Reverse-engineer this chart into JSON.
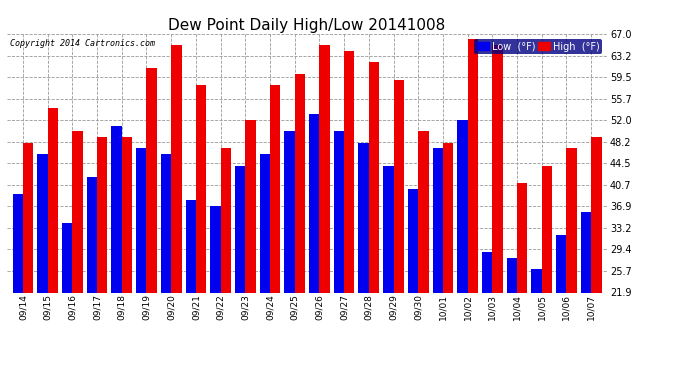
{
  "title": "Dew Point Daily High/Low 20141008",
  "copyright": "Copyright 2014 Cartronics.com",
  "dates": [
    "09/14",
    "09/15",
    "09/16",
    "09/17",
    "09/18",
    "09/19",
    "09/20",
    "09/21",
    "09/22",
    "09/23",
    "09/24",
    "09/25",
    "09/26",
    "09/27",
    "09/28",
    "09/29",
    "09/30",
    "10/01",
    "10/02",
    "10/03",
    "10/04",
    "10/05",
    "10/06",
    "10/07"
  ],
  "low": [
    39,
    46,
    34,
    42,
    51,
    47,
    46,
    38,
    37,
    44,
    46,
    50,
    53,
    50,
    48,
    44,
    40,
    47,
    52,
    29,
    28,
    26,
    32,
    36
  ],
  "high": [
    48,
    54,
    50,
    49,
    49,
    61,
    65,
    58,
    47,
    52,
    58,
    60,
    65,
    64,
    62,
    59,
    50,
    48,
    66,
    65,
    41,
    44,
    47,
    49
  ],
  "ymin": 21.9,
  "ymax": 67.0,
  "yticks": [
    21.9,
    25.7,
    29.4,
    33.2,
    36.9,
    40.7,
    44.5,
    48.2,
    52.0,
    55.7,
    59.5,
    63.2,
    67.0
  ],
  "low_color": "#0000ee",
  "high_color": "#ee0000",
  "background_color": "#ffffff",
  "grid_color": "#999999",
  "bar_width": 0.42,
  "title_fontsize": 11,
  "legend_low_label": "Low  (°F)",
  "legend_high_label": "High  (°F)"
}
